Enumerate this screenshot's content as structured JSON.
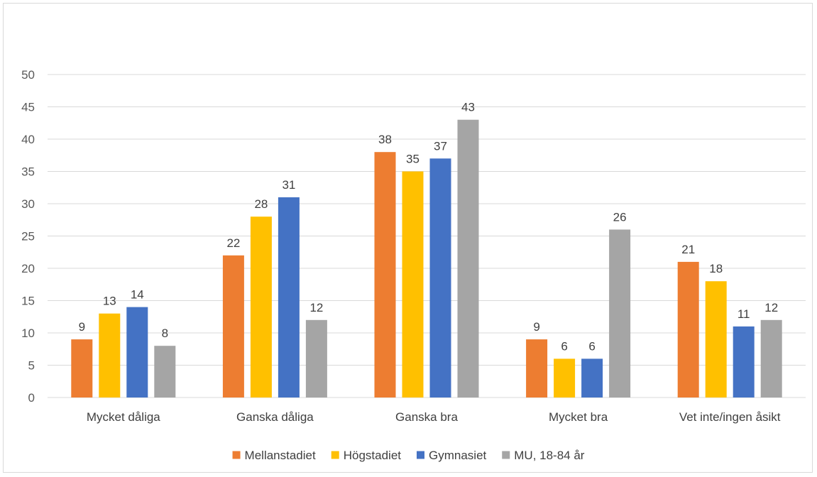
{
  "chart_data": {
    "type": "bar",
    "categories": [
      "Mycket dåliga",
      "Ganska dåliga",
      "Ganska bra",
      "Mycket bra",
      "Vet inte/ingen åsikt"
    ],
    "series": [
      {
        "name": "Mellanstadiet",
        "color": "#ed7d31",
        "values": [
          9,
          22,
          38,
          9,
          21
        ]
      },
      {
        "name": "Högstadiet",
        "color": "#ffc000",
        "values": [
          13,
          28,
          35,
          6,
          18
        ]
      },
      {
        "name": "Gymnasiet",
        "color": "#4472c4",
        "values": [
          14,
          31,
          37,
          6,
          11
        ]
      },
      {
        "name": "MU, 18-84 år",
        "color": "#a5a5a5",
        "values": [
          8,
          12,
          43,
          26,
          12
        ]
      }
    ],
    "ylim": [
      0,
      50
    ],
    "yticks": [
      0,
      5,
      10,
      15,
      20,
      25,
      30,
      35,
      40,
      45,
      50
    ],
    "grid": true,
    "gridline_color": "#d9d9d9",
    "legend_position": "bottom",
    "data_labels": true
  }
}
